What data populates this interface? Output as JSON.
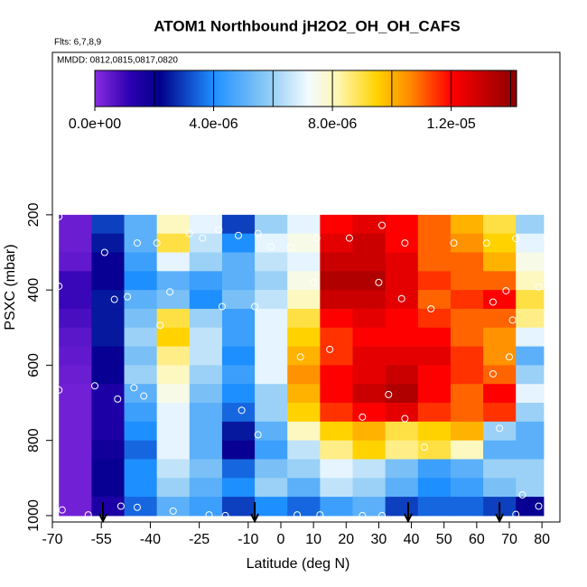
{
  "chart_data": {
    "type": "heatmap",
    "title": "ATOM1 Northbound jH2O2_OH_OH_CAFS",
    "subtitle": "Flts: 6,7,8,9",
    "annotation": "MMDD: 0812,0815,0817,0820",
    "x_label": "Latitude (deg N)",
    "y_label": "PSXC (mbar)",
    "xlim": [
      -70,
      85.5
    ],
    "ylim": [
      1017,
      -232
    ],
    "xticks": [
      -70,
      -55,
      -40,
      -25,
      -10,
      0,
      10,
      20,
      30,
      40,
      50,
      60,
      70,
      80
    ],
    "yticks": [
      200,
      400,
      600,
      800,
      1000
    ],
    "lat_edges": [
      -68,
      -58,
      -48,
      -38,
      -28,
      -18,
      -8,
      2,
      12,
      22,
      32,
      42,
      52,
      62,
      72,
      80.5
    ],
    "pressure_edges": [
      200,
      250,
      300,
      350,
      400,
      450,
      500,
      550,
      600,
      650,
      700,
      750,
      800,
      850,
      900,
      950,
      1000
    ],
    "z": [
      [
        4e-07,
        3e-06,
        5e-06,
        8e-06,
        7e-06,
        3e-06,
        6e-06,
        7e-06,
        1.2e-05,
        1.25e-05,
        1.2e-05,
        1.1e-05,
        1e-05,
        9e-06,
        6e-06
      ],
      [
        4e-07,
        2.5e-06,
        5e-06,
        9e-06,
        6.5e-06,
        4e-06,
        7e-06,
        7.5e-06,
        1.25e-05,
        1.3e-05,
        1.2e-05,
        1.1e-05,
        1.05e-05,
        9.5e-06,
        7e-06
      ],
      [
        5e-07,
        2e-06,
        4.5e-06,
        7e-06,
        6e-06,
        5e-06,
        6.5e-06,
        7e-06,
        1.3e-05,
        1.3e-05,
        1.25e-05,
        1.1e-05,
        1.1e-05,
        1e-05,
        7.5e-06
      ],
      [
        1e-06,
        2e-06,
        4e-06,
        5e-06,
        4.5e-06,
        5e-06,
        6e-06,
        7.5e-06,
        1.35e-05,
        1.35e-05,
        1.25e-05,
        1.15e-05,
        1.1e-05,
        1.1e-05,
        8e-06
      ],
      [
        1e-06,
        2.5e-06,
        5e-06,
        5.5e-06,
        4e-06,
        5.5e-06,
        6.5e-06,
        8e-06,
        1.3e-05,
        1.3e-05,
        1.25e-05,
        1.1e-05,
        1.15e-05,
        1.2e-05,
        9e-06
      ],
      [
        8e-07,
        2.5e-06,
        5.5e-06,
        9e-06,
        6e-06,
        4.5e-06,
        7e-06,
        9e-06,
        1.2e-05,
        1.25e-05,
        1.2e-05,
        1.15e-05,
        1.1e-05,
        1.1e-05,
        8.5e-06
      ],
      [
        6e-07,
        2.5e-06,
        6e-06,
        9.5e-06,
        6.5e-06,
        4.5e-06,
        7e-06,
        9.5e-06,
        1.15e-05,
        1.2e-05,
        1.2e-05,
        1.2e-05,
        1.1e-05,
        1.05e-05,
        7e-06
      ],
      [
        5e-07,
        2e-06,
        5.5e-06,
        8.5e-06,
        6.5e-06,
        4e-06,
        7e-06,
        1e-05,
        1.15e-05,
        1.25e-05,
        1.25e-05,
        1.25e-05,
        1.15e-05,
        1.05e-05,
        5e-06
      ],
      [
        4e-07,
        2e-06,
        6e-06,
        8e-06,
        6e-06,
        4.5e-06,
        7e-06,
        1.05e-05,
        1.2e-05,
        1.25e-05,
        1.3e-05,
        1.2e-05,
        1.15e-05,
        1.1e-05,
        6e-06
      ],
      [
        3e-07,
        1.5e-06,
        5e-06,
        7.5e-06,
        5.5e-06,
        4e-06,
        6e-06,
        1e-05,
        1.2e-05,
        1.3e-05,
        1.35e-05,
        1.2e-05,
        1.1e-05,
        1.2e-05,
        7e-06
      ],
      [
        3e-07,
        1.5e-06,
        4.5e-06,
        7e-06,
        5e-06,
        3.5e-06,
        6e-06,
        9.5e-06,
        1.15e-05,
        1.2e-05,
        1.25e-05,
        1.15e-05,
        1.1e-05,
        1.15e-05,
        6e-06
      ],
      [
        3e-07,
        1.5e-06,
        4e-06,
        7e-06,
        5e-06,
        2.5e-06,
        5e-06,
        8e-06,
        9.5e-06,
        1e-05,
        9e-06,
        9.5e-06,
        1e-05,
        6e-06,
        5e-06
      ],
      [
        3e-07,
        1.8e-06,
        3.5e-06,
        7e-06,
        5e-06,
        2e-06,
        4.5e-06,
        6.5e-06,
        8.5e-06,
        9.5e-06,
        8.5e-06,
        9e-06,
        8e-06,
        5e-06,
        5e-06
      ],
      [
        3e-07,
        2e-06,
        4e-06,
        6.5e-06,
        5.5e-06,
        3.5e-06,
        5.5e-06,
        6e-06,
        7e-06,
        6.5e-06,
        5.5e-06,
        4.5e-06,
        5e-06,
        6e-06,
        6e-06
      ],
      [
        3e-07,
        2e-06,
        4e-06,
        6e-06,
        5e-06,
        4e-06,
        6e-06,
        5e-06,
        6.5e-06,
        6e-06,
        5e-06,
        4e-06,
        4.5e-06,
        5.5e-06,
        6e-06
      ],
      [
        3e-07,
        1.5e-06,
        3.5e-06,
        5e-06,
        4.5e-06,
        3e-06,
        4e-06,
        3.5e-06,
        4.5e-06,
        5e-06,
        3e-06,
        3.5e-06,
        3.5e-06,
        3e-06,
        2e-06
      ]
    ],
    "point_lat": [
      -68,
      -54,
      -44,
      -38,
      -28,
      -24,
      -19,
      -13,
      -7,
      -3,
      3,
      11,
      21,
      31,
      38,
      53,
      63,
      72,
      -68,
      -47,
      -51,
      -34,
      -37,
      -18,
      -8,
      10,
      30,
      37,
      46,
      65,
      69,
      71,
      79,
      15,
      6,
      -50,
      -42,
      -45,
      -68,
      -57,
      -12,
      -7,
      25,
      33,
      38,
      44,
      65,
      70,
      67,
      74,
      -67,
      -59,
      -49,
      -44,
      -33,
      -22,
      -17,
      5,
      12,
      25,
      31,
      72,
      79
    ],
    "point_pressure": [
      205,
      300,
      275,
      275,
      250,
      262,
      240,
      255,
      250,
      285,
      287,
      262,
      262,
      228,
      275,
      275,
      275,
      263,
      390,
      418,
      425,
      405,
      494,
      444,
      444,
      380,
      380,
      423,
      450,
      432,
      402,
      480,
      392,
      558,
      578,
      690,
      682,
      660,
      666,
      655,
      720,
      785,
      738,
      678,
      742,
      818,
      623,
      578,
      768,
      945,
      985,
      998,
      975,
      978,
      988,
      998,
      1000,
      998,
      998,
      1000,
      1000,
      997,
      975
    ],
    "arrow_lat": [
      -54.5,
      -8,
      39,
      67
    ],
    "colorbar": {
      "lim": [
        0,
        1.42e-05
      ],
      "ticks": [
        {
          "value": 0,
          "label": "0.0e+00"
        },
        {
          "value": 4e-06,
          "label": "4.0e-06"
        },
        {
          "value": 8e-06,
          "label": "8.0e-06"
        },
        {
          "value": 1.2e-05,
          "label": "1.2e-05"
        }
      ],
      "breaks": [
        2e-06,
        4e-06,
        6e-06,
        8e-06,
        1e-05,
        1.2e-05,
        1.4e-05
      ],
      "stops": [
        {
          "value": 0,
          "color": "#8a2be2"
        },
        {
          "value": 1.2e-06,
          "color": "#2a00b0"
        },
        {
          "value": 2.2e-06,
          "color": "#00008b"
        },
        {
          "value": 4e-06,
          "color": "#1e8fff"
        },
        {
          "value": 5.8e-06,
          "color": "#8ccaf5"
        },
        {
          "value": 7.2e-06,
          "color": "#f4fbff"
        },
        {
          "value": 8.2e-06,
          "color": "#fff6b0"
        },
        {
          "value": 9.5e-06,
          "color": "#ffd200"
        },
        {
          "value": 1.06e-05,
          "color": "#ff8c00"
        },
        {
          "value": 1.2e-05,
          "color": "#ff0000"
        },
        {
          "value": 1.42e-05,
          "color": "#8b0000"
        }
      ]
    }
  }
}
